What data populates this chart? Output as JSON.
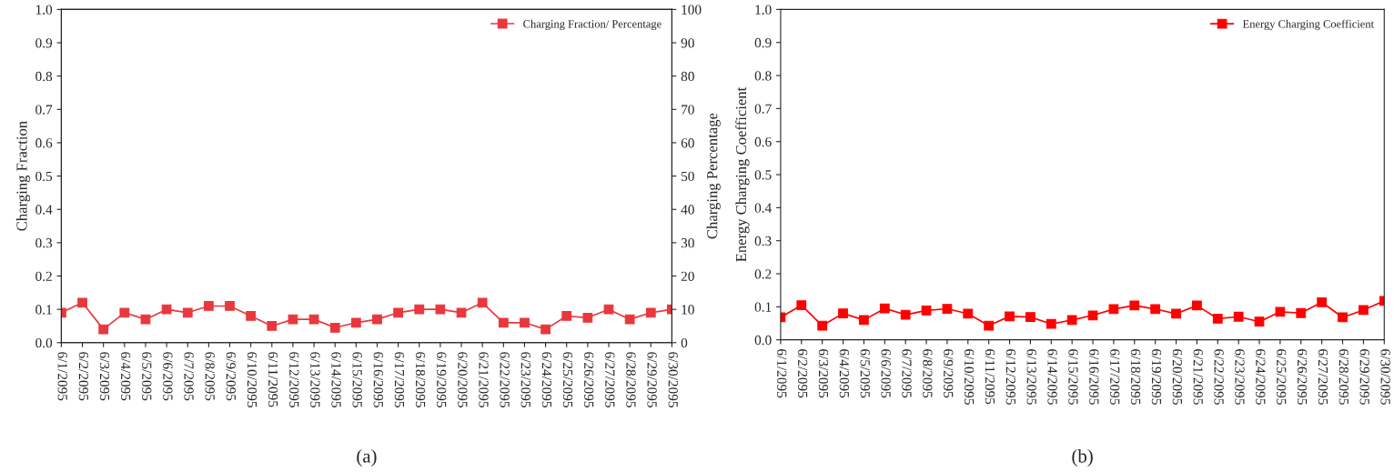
{
  "chart_data": [
    {
      "type": "line",
      "title": "(a)",
      "ylabel": "Charging Fraction",
      "y2label": "Charging Percentage",
      "categories": [
        "6/1/2095",
        "6/2/2095",
        "6/3/2095",
        "6/4/2095",
        "6/5/2095",
        "6/6/2095",
        "6/7/2095",
        "6/8/2095",
        "6/9/2095",
        "6/10/2095",
        "6/11/2095",
        "6/12/2095",
        "6/13/2095",
        "6/14/2095",
        "6/15/2095",
        "6/16/2095",
        "6/17/2095",
        "6/18/2095",
        "6/19/2095",
        "6/20/2095",
        "6/21/2095",
        "6/22/2095",
        "6/23/2095",
        "6/24/2095",
        "6/25/2095",
        "6/26/2095",
        "6/27/2095",
        "6/28/2095",
        "6/29/2095",
        "6/30/2095"
      ],
      "series": [
        {
          "name": "Charging Fraction/ Percentage",
          "color": "#e8383d",
          "values": [
            0.09,
            0.12,
            0.04,
            0.09,
            0.07,
            0.1,
            0.09,
            0.11,
            0.11,
            0.08,
            0.05,
            0.07,
            0.07,
            0.045,
            0.06,
            0.07,
            0.09,
            0.1,
            0.1,
            0.09,
            0.12,
            0.06,
            0.06,
            0.04,
            0.08,
            0.075,
            0.1,
            0.07,
            0.09,
            0.1
          ]
        }
      ],
      "ylim": [
        0,
        1
      ],
      "yticks": [
        {
          "value": 0,
          "label": "0.0"
        },
        {
          "value": 0.1,
          "label": "0.1"
        },
        {
          "value": 0.2,
          "label": "0.2"
        },
        {
          "value": 0.3,
          "label": "0.3"
        },
        {
          "value": 0.4,
          "label": "0.4"
        },
        {
          "value": 0.5,
          "label": "0.5"
        },
        {
          "value": 0.6,
          "label": "0.6"
        },
        {
          "value": 0.7,
          "label": "0.7"
        },
        {
          "value": 0.8,
          "label": "0.8"
        },
        {
          "value": 0.9,
          "label": "0.9"
        },
        {
          "value": 1,
          "label": "1.0"
        }
      ],
      "y2lim": [
        0,
        100
      ],
      "y2ticks": [
        0,
        10,
        20,
        30,
        40,
        50,
        60,
        70,
        80,
        90,
        100
      ],
      "marker": "square",
      "line_style": "solid",
      "legend": "top right",
      "grid": false
    },
    {
      "type": "line",
      "title": "(b)",
      "ylabel": "Energy Charging Coefficient",
      "categories": [
        "6/1/2095",
        "6/2/2095",
        "6/3/2095",
        "6/4/2095",
        "6/5/2095",
        "6/6/2095",
        "6/7/2095",
        "6/8/2095",
        "6/9/2095",
        "6/10/2095",
        "6/11/2095",
        "6/12/2095",
        "6/13/2095",
        "6/14/2095",
        "6/15/2095",
        "6/16/2095",
        "6/17/2095",
        "6/18/2095",
        "6/19/2095",
        "6/20/2095",
        "6/21/2095",
        "6/22/2095",
        "6/23/2095",
        "6/24/2095",
        "6/25/2095",
        "6/26/2095",
        "6/27/2095",
        "6/28/2095",
        "6/29/2095",
        "6/30/2095"
      ],
      "series": [
        {
          "name": "Energy Charging Coefficient",
          "color": "#ff0000",
          "values": [
            0.068,
            0.105,
            0.043,
            0.08,
            0.06,
            0.095,
            0.076,
            0.089,
            0.094,
            0.079,
            0.043,
            0.071,
            0.069,
            0.048,
            0.06,
            0.074,
            0.093,
            0.104,
            0.093,
            0.079,
            0.104,
            0.064,
            0.07,
            0.055,
            0.085,
            0.081,
            0.114,
            0.068,
            0.09,
            0.118
          ]
        }
      ],
      "ylim": [
        0,
        1
      ],
      "yticks": [
        {
          "value": 0,
          "label": "0.0"
        },
        {
          "value": 0.1,
          "label": "0.1"
        },
        {
          "value": 0.2,
          "label": "0.2"
        },
        {
          "value": 0.3,
          "label": "0.3"
        },
        {
          "value": 0.4,
          "label": "0.4"
        },
        {
          "value": 0.5,
          "label": "0.5"
        },
        {
          "value": 0.6,
          "label": "0.6"
        },
        {
          "value": 0.7,
          "label": "0.7"
        },
        {
          "value": 0.8,
          "label": "0.8"
        },
        {
          "value": 0.9,
          "label": "0.9"
        },
        {
          "value": 1,
          "label": "1.0"
        }
      ],
      "marker": "square",
      "line_style": "solid",
      "legend": "top right",
      "grid": false
    }
  ]
}
